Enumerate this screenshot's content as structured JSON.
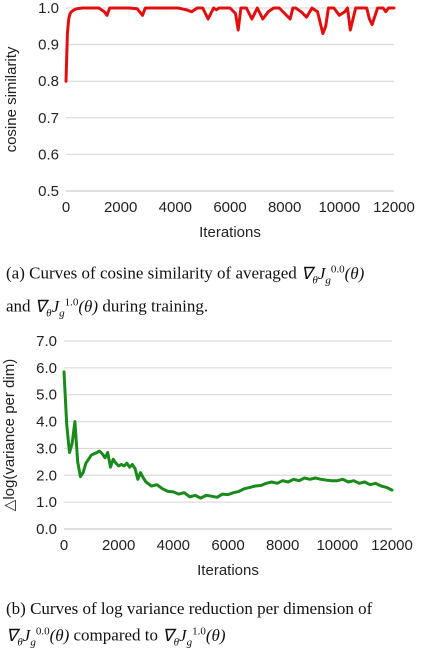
{
  "chart_data": [
    {
      "type": "line",
      "ylabel": "cosine similarity",
      "xlabel": "Iterations",
      "xlim": [
        0,
        12000
      ],
      "ylim": [
        0.5,
        1.0
      ],
      "xticks": [
        "0",
        "2000",
        "4000",
        "6000",
        "8000",
        "10000",
        "12000"
      ],
      "yticks": [
        "0.5",
        "0.6",
        "0.7",
        "0.8",
        "0.9",
        "1.0"
      ],
      "grid": "horizontal",
      "series": [
        {
          "color": "#e01010",
          "x": [
            0,
            50,
            100,
            150,
            200,
            300,
            400,
            600,
            800,
            1000,
            1200,
            1400,
            1500,
            1600,
            1800,
            2000,
            2300,
            2600,
            2800,
            2900,
            3000,
            3200,
            3500,
            3800,
            4100,
            4400,
            4600,
            4800,
            4900,
            5000,
            5200,
            5400,
            5500,
            5600,
            5800,
            6000,
            6200,
            6300,
            6400,
            6600,
            6800,
            7000,
            7100,
            7200,
            7400,
            7600,
            7800,
            8000,
            8200,
            8300,
            8400,
            8600,
            8800,
            9000,
            9200,
            9400,
            9500,
            9600,
            9800,
            10000,
            10200,
            10300,
            10400,
            10600,
            10800,
            11000,
            11100,
            11200,
            11400,
            11600,
            11700,
            11800,
            12000
          ],
          "y": [
            0.8,
            0.93,
            0.97,
            0.985,
            0.99,
            0.995,
            0.998,
            1.0,
            1.0,
            1.0,
            1.0,
            0.99,
            0.98,
            1.0,
            1.0,
            1.0,
            1.0,
            0.998,
            0.98,
            1.0,
            1.0,
            1.0,
            1.0,
            1.0,
            1.0,
            0.995,
            0.99,
            1.0,
            1.0,
            1.0,
            0.97,
            1.0,
            0.995,
            1.0,
            1.0,
            1.0,
            0.985,
            0.94,
            1.0,
            1.0,
            0.97,
            1.0,
            0.985,
            0.97,
            0.99,
            1.0,
            1.0,
            0.985,
            0.97,
            1.0,
            1.0,
            0.99,
            0.975,
            1.0,
            0.99,
            0.93,
            0.95,
            1.0,
            1.0,
            0.98,
            0.99,
            1.0,
            0.94,
            1.0,
            1.0,
            1.0,
            0.97,
            0.955,
            1.0,
            1.0,
            0.99,
            1.0,
            1.0
          ]
        }
      ]
    },
    {
      "type": "line",
      "ylabel": "△log(variance per dim)",
      "xlabel": "Iterations",
      "xlim": [
        0,
        12000
      ],
      "ylim": [
        0,
        7
      ],
      "xticks": [
        "0",
        "2000",
        "4000",
        "6000",
        "8000",
        "10000",
        "12000"
      ],
      "yticks": [
        "0.0",
        "1.0",
        "2.0",
        "3.0",
        "4.0",
        "5.0",
        "6.0",
        "7.0"
      ],
      "grid": "horizontal",
      "series": [
        {
          "color": "#1a8a1a",
          "x": [
            0,
            100,
            200,
            300,
            400,
            500,
            600,
            700,
            800,
            900,
            1000,
            1200,
            1300,
            1400,
            1500,
            1600,
            1700,
            1800,
            1900,
            2000,
            2100,
            2200,
            2300,
            2400,
            2500,
            2600,
            2700,
            2800,
            2900,
            3000,
            3200,
            3400,
            3600,
            3800,
            4000,
            4200,
            4400,
            4600,
            4800,
            5000,
            5200,
            5400,
            5600,
            5800,
            6000,
            6200,
            6400,
            6600,
            6800,
            7000,
            7200,
            7400,
            7600,
            7800,
            8000,
            8200,
            8400,
            8600,
            8800,
            9000,
            9200,
            9400,
            9600,
            9800,
            10000,
            10200,
            10400,
            10600,
            10800,
            11000,
            11200,
            11400,
            11600,
            11800,
            12000
          ],
          "y": [
            5.85,
            3.9,
            2.85,
            3.2,
            4.0,
            2.5,
            1.95,
            2.1,
            2.45,
            2.6,
            2.75,
            2.85,
            2.9,
            2.8,
            2.65,
            2.85,
            2.3,
            2.6,
            2.45,
            2.35,
            2.4,
            2.35,
            2.45,
            2.3,
            2.4,
            2.25,
            1.85,
            2.1,
            1.9,
            1.75,
            1.6,
            1.65,
            1.5,
            1.4,
            1.38,
            1.3,
            1.35,
            1.2,
            1.25,
            1.15,
            1.25,
            1.22,
            1.18,
            1.3,
            1.28,
            1.35,
            1.4,
            1.5,
            1.55,
            1.6,
            1.62,
            1.7,
            1.75,
            1.7,
            1.8,
            1.75,
            1.85,
            1.8,
            1.9,
            1.85,
            1.9,
            1.85,
            1.82,
            1.8,
            1.8,
            1.85,
            1.75,
            1.8,
            1.7,
            1.75,
            1.65,
            1.7,
            1.6,
            1.55,
            1.45
          ]
        }
      ]
    }
  ],
  "captions": {
    "a": {
      "label": "(a)",
      "text1": "Curves of cosine similarity of averaged",
      "text2": "and",
      "text3": "during training."
    },
    "b": {
      "label": "(b)",
      "text1": "Curves of log variance reduction per dimension of",
      "text2": "compared to"
    }
  }
}
